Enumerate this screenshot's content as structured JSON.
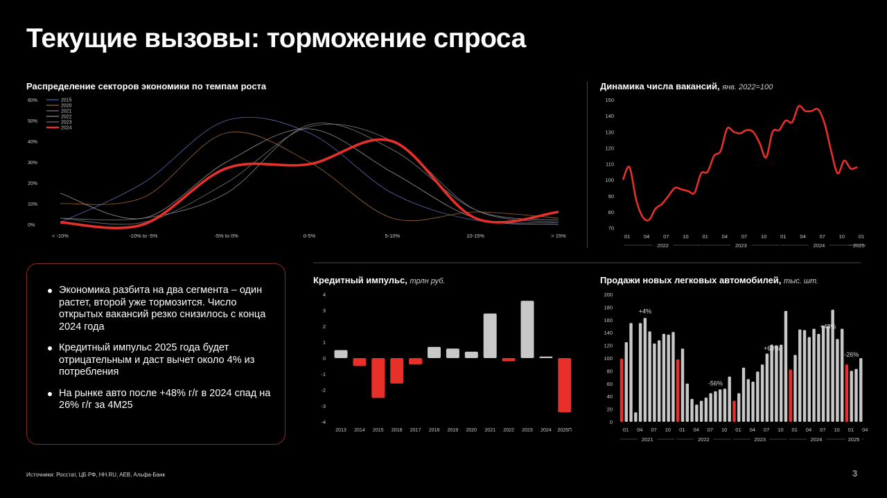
{
  "page": {
    "title": "Текущие вызовы: торможение спроса",
    "sources": "Источники: Росстат, ЦБ РФ, HH.RU, AEB, Альфа-Банк",
    "page_number": "3",
    "bullets": [
      "Экономика разбита на два сегмента – один растет, второй уже тормозится. Число открытых вакансий резко снизилось с конца 2024 года",
      "Кредитный импульс 2025 года будет отрицательным и даст вычет около 4% из потребления",
      "На рынке авто после +48% г/г в 2024 спад на 26% г/г за 4М25"
    ],
    "colors": {
      "accent": "#e8302a",
      "grey_bar": "#c8c8c8",
      "background": "#000000"
    }
  },
  "chart_data": [
    {
      "type": "line",
      "title": "Распределение секторов экономики по темпам роста",
      "categories": [
        "< -10%",
        "-10% to -5%",
        "-5% to 0%",
        "0-5%",
        "5-10%",
        "10-15%",
        "> 15%"
      ],
      "y_ticks": [
        "0%",
        "10%",
        "20%",
        "30%",
        "40%",
        "50%",
        "60%"
      ],
      "ylim": [
        0,
        60
      ],
      "legend_position": "top-left",
      "series": [
        {
          "name": "2015",
          "color": "#6a7bd0",
          "values": [
            1,
            20,
            50,
            44,
            15,
            2,
            1
          ]
        },
        {
          "name": "2020",
          "color": "#c07a3a",
          "values": [
            10,
            13,
            44,
            30,
            3,
            6,
            3
          ]
        },
        {
          "name": "2021",
          "color": "#9a9a9a",
          "values": [
            3,
            3,
            15,
            48,
            36,
            7,
            2
          ]
        },
        {
          "name": "2022",
          "color": "#b5b5b5",
          "values": [
            15,
            3,
            30,
            46,
            25,
            3,
            0
          ]
        },
        {
          "name": "2023",
          "color": "#7f8fa0",
          "values": [
            3,
            1,
            20,
            47,
            40,
            7,
            1
          ]
        },
        {
          "name": "2024",
          "color": "#e8302a",
          "values": [
            1,
            0,
            27,
            29,
            40,
            3,
            6
          ]
        }
      ]
    },
    {
      "type": "line",
      "title": "Динамика числа вакансий,",
      "unit": "янв. 2022=100",
      "ylim": [
        70,
        150
      ],
      "y_ticks": [
        "70",
        "80",
        "90",
        "100",
        "110",
        "120",
        "130",
        "140",
        "150"
      ],
      "x_ticks": [
        "01",
        "04",
        "07",
        "10",
        "01",
        "04",
        "07",
        "10",
        "01",
        "04",
        "07",
        "10",
        "01",
        "04"
      ],
      "year_labels": [
        "2022",
        "2023",
        "2024",
        "2025"
      ],
      "series": [
        {
          "name": "",
          "color": "#e8302a",
          "values": [
            100,
            108,
            88,
            77,
            75,
            82,
            85,
            90,
            95,
            94,
            93,
            92,
            104,
            105,
            115,
            118,
            132,
            130,
            129,
            131,
            130,
            123,
            114,
            130,
            131,
            137,
            136,
            146,
            143,
            143,
            144,
            135,
            118,
            104,
            112,
            107,
            108
          ]
        }
      ]
    },
    {
      "type": "bar",
      "title": "Кредитный импульс,",
      "unit": "трлн руб.",
      "categories": [
        "2013",
        "2014",
        "2015",
        "2016",
        "2017",
        "2018",
        "2019",
        "2020",
        "2021",
        "2022",
        "2023",
        "2024",
        "2025П"
      ],
      "values": [
        0.5,
        -0.5,
        -2.5,
        -1.6,
        -0.4,
        0.7,
        0.6,
        0.4,
        2.8,
        -0.2,
        3.6,
        0.1,
        -3.4
      ],
      "ylim": [
        -4,
        4
      ],
      "y_ticks": [
        "4",
        "3",
        "2",
        "1",
        "0",
        "-1",
        "-2",
        "-3",
        "-4"
      ]
    },
    {
      "type": "bar",
      "title": "Продажи новых легковых автомобилей,",
      "unit": "тыс. шт.",
      "ylim": [
        0,
        200
      ],
      "y_ticks": [
        "200",
        "180",
        "160",
        "140",
        "120",
        "100",
        "80",
        "60",
        "40",
        "20",
        "0"
      ],
      "x_ticks": [
        "01",
        "04",
        "07",
        "10",
        "01",
        "04",
        "07",
        "10",
        "01",
        "04",
        "07",
        "10",
        "01",
        "04",
        "07",
        "10",
        "01",
        "04"
      ],
      "year_labels": [
        "2021",
        "2022",
        "2023",
        "2024",
        "2025"
      ],
      "annotations": [
        "+4%",
        "-56%",
        "+63%",
        "+48%",
        "-26%"
      ],
      "highlight_months": "January of each year",
      "values": [
        99,
        125,
        155,
        15,
        155,
        163,
        142,
        123,
        128,
        138,
        137,
        141,
        98,
        115,
        60,
        36,
        27,
        33,
        38,
        45,
        48,
        51,
        52,
        71,
        33,
        45,
        85,
        67,
        63,
        79,
        90,
        107,
        121,
        120,
        121,
        174,
        82,
        105,
        145,
        144,
        133,
        146,
        138,
        151,
        150,
        176,
        130,
        146,
        90,
        80,
        83,
        100
      ]
    }
  ]
}
